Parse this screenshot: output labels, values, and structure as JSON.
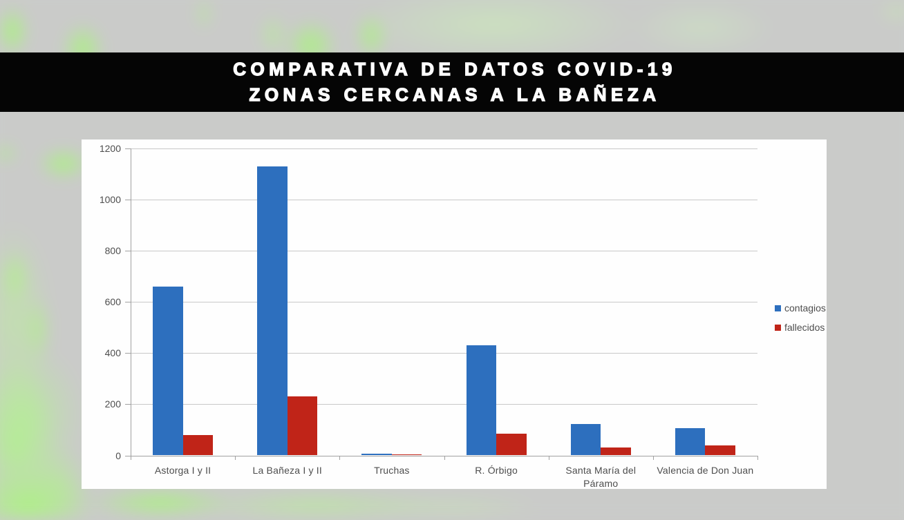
{
  "banner": {
    "line1": "COMPARATIVA DE DATOS COVID-19",
    "line2": "ZONAS CERCANAS A LA BAÑEZA"
  },
  "chart_data": {
    "type": "bar",
    "title": "",
    "categories": [
      "Astorga I y II",
      "La Bañeza I y II",
      "Truchas",
      "R. Órbigo",
      "Santa María del Páramo",
      "Valencia de Don Juan"
    ],
    "series": [
      {
        "name": "contagios",
        "color": "#2d6fbe",
        "values": [
          660,
          1130,
          8,
          430,
          122,
          107
        ]
      },
      {
        "name": "fallecidos",
        "color": "#c02418",
        "values": [
          80,
          230,
          5,
          85,
          30,
          40
        ]
      }
    ],
    "ylim": [
      0,
      1200
    ],
    "ytick_step": 200,
    "grid": true,
    "legend_position": "right"
  },
  "colors": {
    "banner_background": "#000000",
    "panel_background": "#ffffff"
  }
}
